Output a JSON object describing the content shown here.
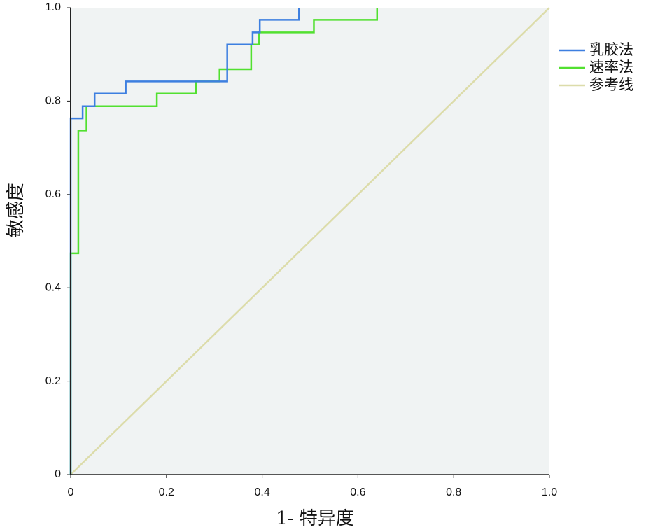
{
  "chart_data": {
    "type": "line",
    "step": true,
    "x_label": "1- 特异度",
    "y_label": "敏感度",
    "xlim": [
      0,
      1
    ],
    "ylim": [
      0,
      1
    ],
    "xticks": [
      0,
      0.2,
      0.4,
      0.6,
      0.8,
      {
        "value": 1,
        "label": "1.0"
      }
    ],
    "yticks": [
      0,
      0.2,
      0.4,
      0.6,
      0.8,
      {
        "value": 1,
        "label": "1.0"
      }
    ],
    "background": "#f0f3f3",
    "legend": "right",
    "series": [
      {
        "name": "乳胶法",
        "color": "#3d7fe0",
        "x": [
          0,
          0,
          0.025,
          0.025,
          0.05,
          0.05,
          0.115,
          0.115,
          0.327,
          0.327,
          0.38,
          0.38,
          0.395,
          0.395,
          0.477,
          0.477
        ],
        "values": [
          0,
          0.763,
          0.763,
          0.789,
          0.789,
          0.816,
          0.816,
          0.842,
          0.842,
          0.921,
          0.921,
          0.947,
          0.947,
          0.974,
          0.974,
          1
        ]
      },
      {
        "name": "速率法",
        "color": "#52e030",
        "x": [
          0,
          0,
          0.016,
          0.016,
          0.033,
          0.033,
          0.18,
          0.18,
          0.262,
          0.262,
          0.311,
          0.311,
          0.377,
          0.377,
          0.393,
          0.393,
          0.508,
          0.508,
          0.64,
          0.64
        ],
        "values": [
          0,
          0.474,
          0.474,
          0.737,
          0.737,
          0.789,
          0.789,
          0.816,
          0.816,
          0.842,
          0.842,
          0.868,
          0.868,
          0.921,
          0.921,
          0.947,
          0.947,
          0.974,
          0.974,
          1
        ]
      },
      {
        "name": "参考线",
        "color": "#dcdcaa",
        "x": [
          0,
          1
        ],
        "values": [
          0,
          1
        ]
      }
    ]
  }
}
